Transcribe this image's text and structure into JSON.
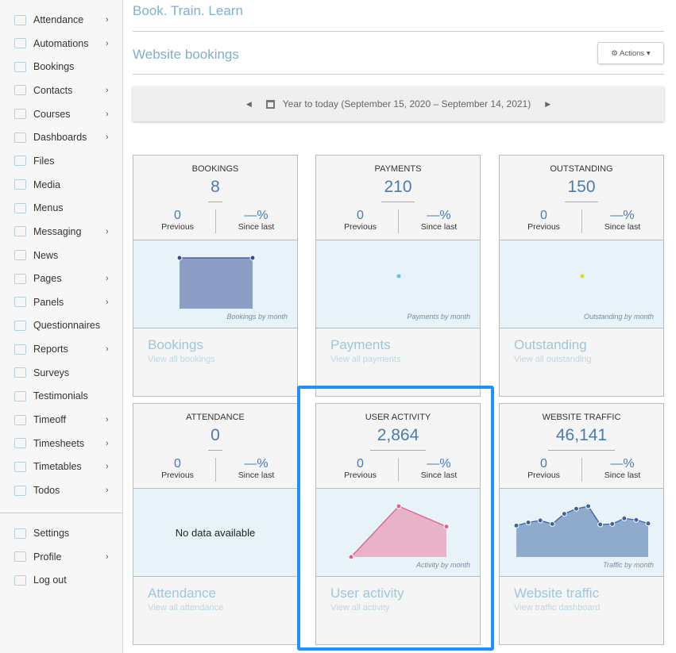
{
  "sidebar": {
    "items": [
      {
        "label": "Attendance",
        "icon": "attendance-icon",
        "sub": true
      },
      {
        "label": "Automations",
        "icon": "bell-icon",
        "sub": true
      },
      {
        "label": "Bookings",
        "icon": "tag-icon",
        "sub": false
      },
      {
        "label": "Contacts",
        "icon": "contacts-icon",
        "sub": true
      },
      {
        "label": "Courses",
        "icon": "courses-icon",
        "sub": true
      },
      {
        "label": "Dashboards",
        "icon": "dashboard-icon",
        "sub": true
      },
      {
        "label": "Files",
        "icon": "folder-icon",
        "sub": false
      },
      {
        "label": "Media",
        "icon": "media-icon",
        "sub": false
      },
      {
        "label": "Menus",
        "icon": "menu-icon",
        "sub": false
      },
      {
        "label": "Messaging",
        "icon": "messaging-icon",
        "sub": true
      },
      {
        "label": "News",
        "icon": "news-icon",
        "sub": false
      },
      {
        "label": "Pages",
        "icon": "pages-icon",
        "sub": true
      },
      {
        "label": "Panels",
        "icon": "panels-icon",
        "sub": true
      },
      {
        "label": "Questionnaires",
        "icon": "questionnaire-icon",
        "sub": false
      },
      {
        "label": "Reports",
        "icon": "reports-icon",
        "sub": true
      },
      {
        "label": "Surveys",
        "icon": "surveys-icon",
        "sub": false
      },
      {
        "label": "Testimonials",
        "icon": "testimonials-icon",
        "sub": false
      },
      {
        "label": "Timeoff",
        "icon": "timeoff-icon",
        "sub": true
      },
      {
        "label": "Timesheets",
        "icon": "timesheets-icon",
        "sub": true
      },
      {
        "label": "Timetables",
        "icon": "timetables-icon",
        "sub": true
      },
      {
        "label": "Todos",
        "icon": "todos-icon",
        "sub": true
      }
    ],
    "bottom": [
      {
        "label": "Settings",
        "icon": "gear-icon",
        "sub": false
      },
      {
        "label": "Profile",
        "icon": "user-icon",
        "sub": true
      },
      {
        "label": "Log out",
        "icon": "logout-icon",
        "sub": false
      }
    ]
  },
  "header": {
    "site_title": "Book. Train. Learn",
    "page_title": "Website bookings",
    "actions_label": "⚙ Actions ▾"
  },
  "range": {
    "prev": "◀",
    "next": "▶",
    "label": "Year to today (September 15, 2020 – September 14, 2021)"
  },
  "cards": [
    {
      "label": "BOOKINGS",
      "value": "8",
      "previous": "0",
      "previous_label": "Previous",
      "change": "—%",
      "change_label": "Since last",
      "caption": "Bookings by month",
      "footer_title": "Bookings",
      "footer_link": "View all bookings",
      "color": "#8c9ec5",
      "line": "#3a4d8c",
      "series": [
        1,
        1
      ]
    },
    {
      "label": "PAYMENTS",
      "value": "210",
      "previous": "0",
      "previous_label": "Previous",
      "change": "—%",
      "change_label": "Since last",
      "caption": "Payments by month",
      "footer_title": "Payments",
      "footer_link": "View all payments",
      "color": "#5bc8e8",
      "line": "#5bc8e8",
      "series": [
        1
      ]
    },
    {
      "label": "OUTSTANDING",
      "value": "150",
      "previous": "0",
      "previous_label": "Previous",
      "change": "—%",
      "change_label": "Since last",
      "caption": "Outstanding by month",
      "footer_title": "Outstanding",
      "footer_link": "View all outstanding",
      "color": "#d4e02a",
      "line": "#d4e02a",
      "series": [
        1
      ]
    },
    {
      "label": "ATTENDANCE",
      "value": "0",
      "previous": "0",
      "previous_label": "Previous",
      "change": "—%",
      "change_label": "Since last",
      "no_data": "No data available",
      "footer_title": "Attendance",
      "footer_link": "View all attendance"
    },
    {
      "label": "USER ACTIVITY",
      "value": "2,864",
      "previous": "0",
      "previous_label": "Previous",
      "change": "—%",
      "change_label": "Since last",
      "caption": "Activity by month",
      "footer_title": "User activity",
      "footer_link": "View all activity",
      "color": "#e8b3c9",
      "line": "#e0608f",
      "series": [
        0,
        1,
        0.6
      ]
    },
    {
      "label": "WEBSITE TRAFFIC",
      "value": "46,141",
      "previous": "0",
      "previous_label": "Previous",
      "change": "—%",
      "change_label": "Since last",
      "caption": "Traffic by month",
      "footer_title": "Website traffic",
      "footer_link": "View traffic dashboard",
      "color": "#8eabcd",
      "line": "#3a64a8",
      "series": [
        0.62,
        0.68,
        0.72,
        0.65,
        0.85,
        0.95,
        1.0,
        0.64,
        0.65,
        0.76,
        0.73,
        0.66
      ]
    }
  ]
}
